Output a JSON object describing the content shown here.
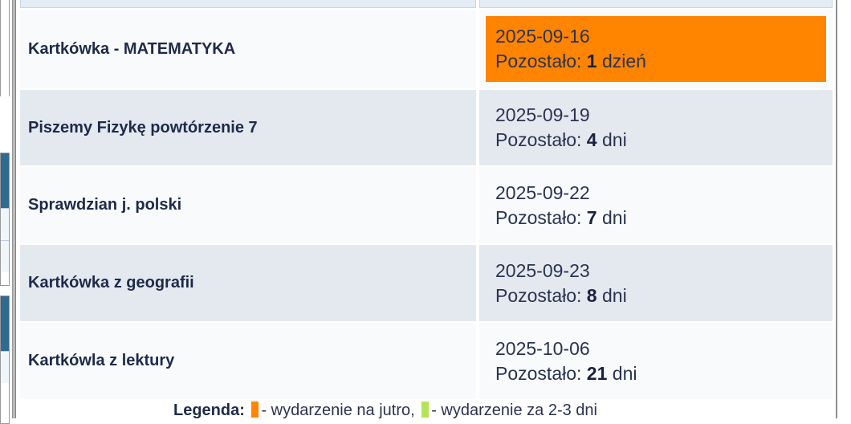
{
  "events": [
    {
      "name": "Kartkówka - MATEMATYKA",
      "date": "2025-09-16",
      "remaining_label": "Pozostało:",
      "remaining": "1",
      "unit": "dzień",
      "highlight": "tomorrow"
    },
    {
      "name": "Piszemy Fizykę powtórzenie 7",
      "date": "2025-09-19",
      "remaining_label": "Pozostało:",
      "remaining": "4",
      "unit": "dni"
    },
    {
      "name": "Sprawdzian j. polski",
      "date": "2025-09-22",
      "remaining_label": "Pozostało:",
      "remaining": "7",
      "unit": "dni"
    },
    {
      "name": "Kartkówka z geografii",
      "date": "2025-09-23",
      "remaining_label": "Pozostało:",
      "remaining": "8",
      "unit": "dni"
    },
    {
      "name": "Kartkówla z lektury",
      "date": "2025-10-06",
      "remaining_label": "Pozostało:",
      "remaining": "21",
      "unit": "dni"
    }
  ],
  "legend": {
    "title": "Legenda:",
    "tomorrow": "- wydarzenie na jutro,",
    "soon": "- wydarzenie za 2-3 dni",
    "colors": {
      "tomorrow": "#ff8400",
      "soon": "#b5e35a"
    }
  }
}
